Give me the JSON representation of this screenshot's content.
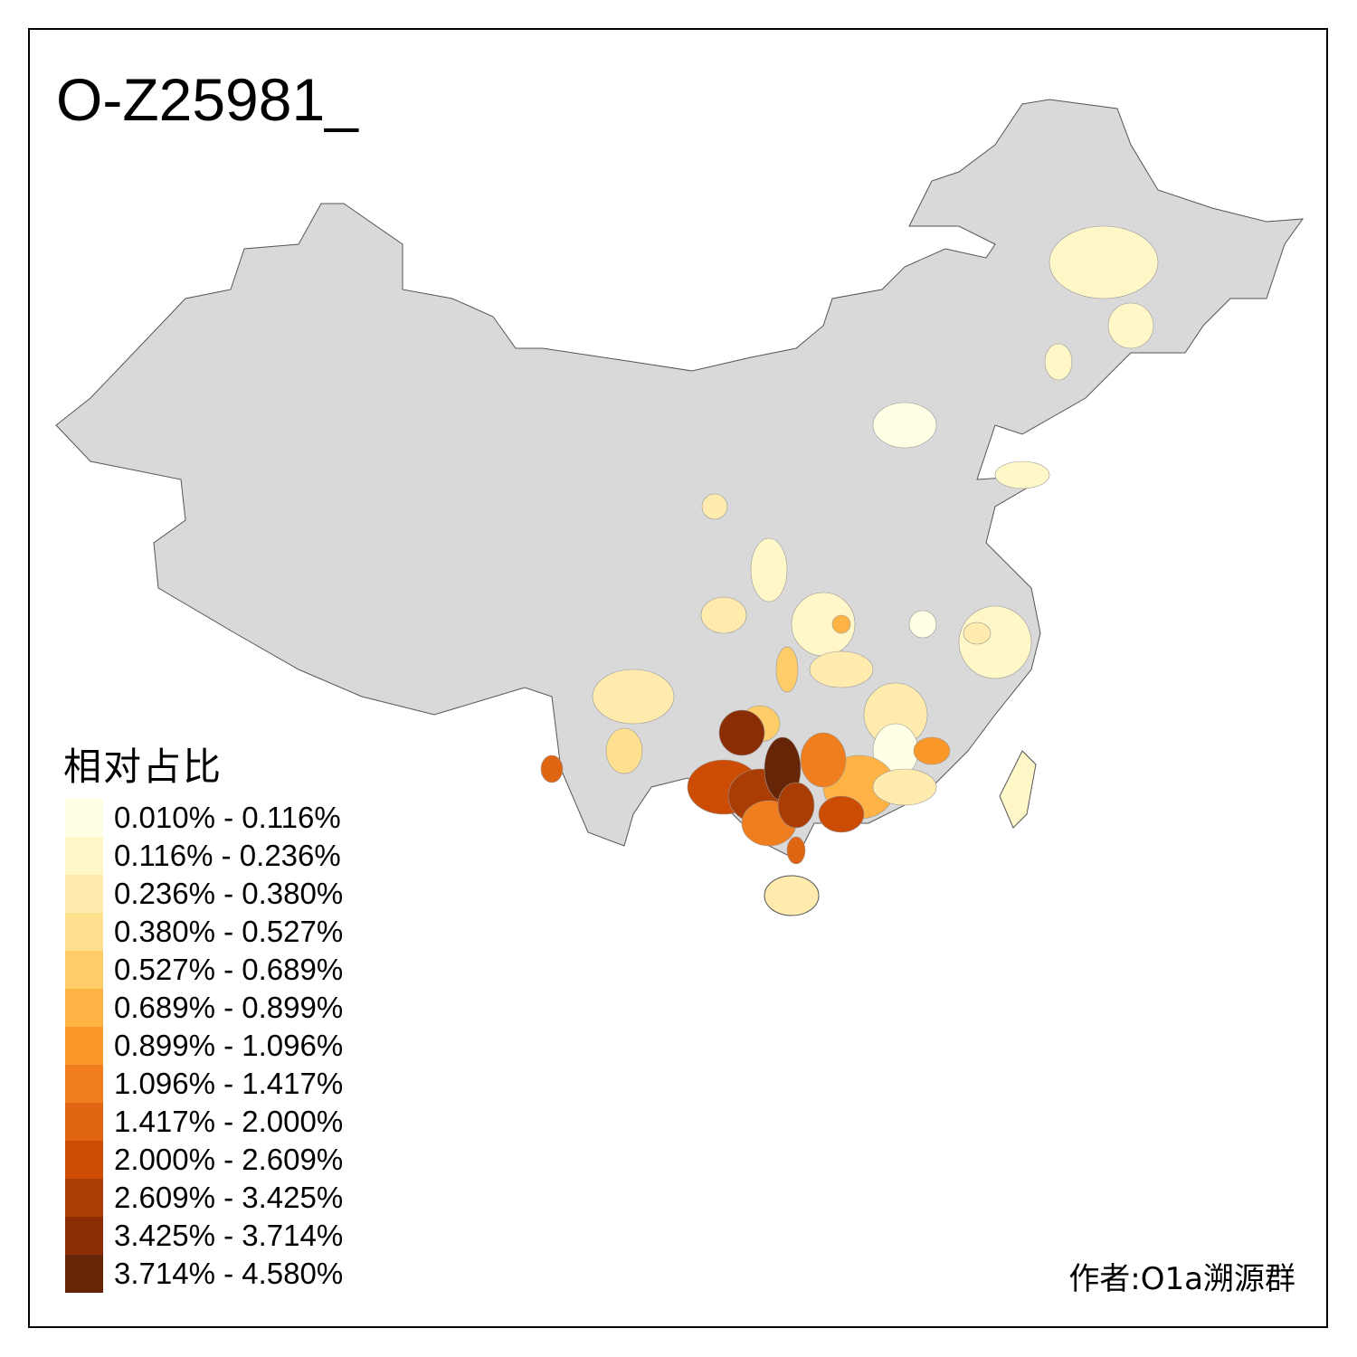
{
  "title": "O-Z25981_",
  "legend": {
    "title": "相对占比",
    "items": [
      {
        "label": "0.010% - 0.116%",
        "color": "#FFFFE5"
      },
      {
        "label": "0.116% - 0.236%",
        "color": "#FFF7C8"
      },
      {
        "label": "0.236% - 0.380%",
        "color": "#FEEBAD"
      },
      {
        "label": "0.380% - 0.527%",
        "color": "#FEE08F"
      },
      {
        "label": "0.527% - 0.689%",
        "color": "#FECD68"
      },
      {
        "label": "0.689% - 0.899%",
        "color": "#FEB344"
      },
      {
        "label": "0.899% - 1.096%",
        "color": "#FB982A"
      },
      {
        "label": "1.096% - 1.417%",
        "color": "#F07E1E"
      },
      {
        "label": "1.417% - 2.000%",
        "color": "#E06512"
      },
      {
        "label": "2.000% - 2.609%",
        "color": "#CC4C03"
      },
      {
        "label": "2.609% - 3.425%",
        "color": "#AA3D04"
      },
      {
        "label": "3.425% - 3.714%",
        "color": "#8B2E05"
      },
      {
        "label": "3.714% - 4.580%",
        "color": "#662506"
      }
    ]
  },
  "base_color": "#D9D9D9",
  "author": "作者:O1a溯源群"
}
